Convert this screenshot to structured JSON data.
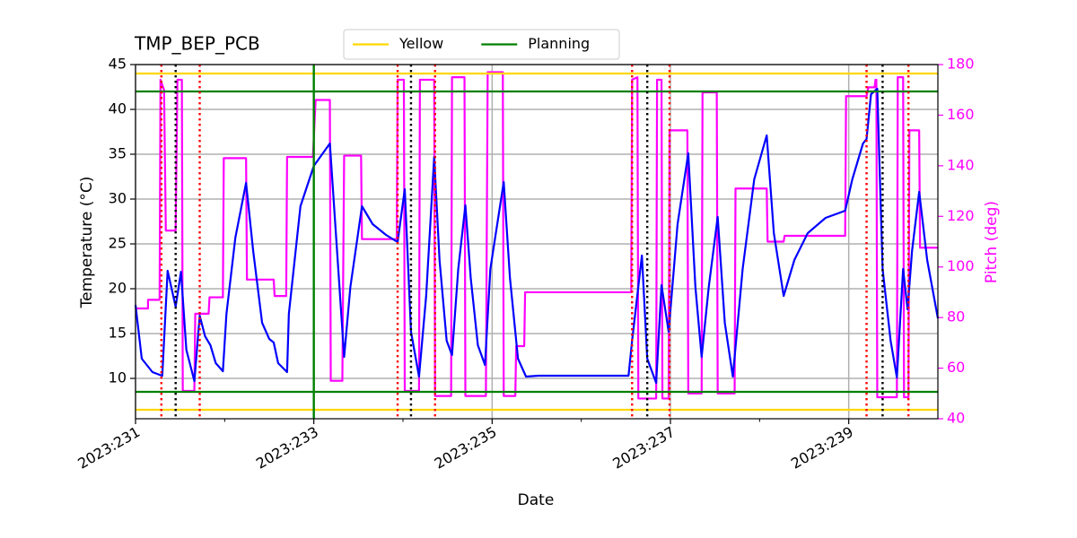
{
  "chart_data": {
    "type": "line",
    "title": "TMP_BEP_PCB",
    "xlabel": "Date",
    "ylabel": "Temperature (°C)",
    "y2label": "Pitch (deg)",
    "xlim": [
      231,
      240
    ],
    "xticks": [
      {
        "value": 231,
        "label": "2023:231"
      },
      {
        "value": 233,
        "label": "2023:233"
      },
      {
        "value": 235,
        "label": "2023:235"
      },
      {
        "value": 237,
        "label": "2023:237"
      },
      {
        "value": 239,
        "label": "2023:239"
      }
    ],
    "xminorticks": [
      232,
      234,
      236,
      238
    ],
    "ylim": [
      5.5,
      45
    ],
    "yticks": [
      10,
      15,
      20,
      25,
      30,
      35,
      40,
      45
    ],
    "y2lim": [
      40,
      180
    ],
    "y2ticks": [
      40,
      60,
      80,
      100,
      120,
      140,
      160,
      180
    ],
    "y2color": "#ff00ff",
    "grid": true,
    "legend": "upper center",
    "hlines": [
      {
        "name": "Yellow",
        "color": "#ffd700",
        "values": [
          44,
          6.5
        ]
      },
      {
        "name": "Planning",
        "color": "#008000",
        "values": [
          42,
          8.5
        ]
      }
    ],
    "vlines": [
      {
        "color": "#008000",
        "style": "solid",
        "x": [
          233
        ]
      },
      {
        "color": "#ff0000",
        "style": "dotted",
        "x": [
          231.29,
          231.72,
          233.94,
          234.36,
          236.57,
          236.99,
          239.2,
          239.67
        ]
      },
      {
        "color": "#000000",
        "style": "dotted",
        "x": [
          231.45,
          234.09,
          236.74,
          239.38
        ]
      }
    ],
    "series": [
      {
        "color": "#0000ff",
        "x": [
          231.0,
          231.07,
          231.19,
          231.27,
          231.3,
          231.36,
          231.45,
          231.51,
          231.57,
          231.66,
          231.72,
          231.78,
          231.84,
          231.9,
          231.98,
          232.02,
          232.12,
          232.24,
          232.32,
          232.42,
          232.5,
          232.55,
          232.6,
          232.7,
          232.72,
          232.85,
          233.0,
          233.18,
          233.34,
          233.41,
          233.54,
          233.66,
          233.81,
          233.94,
          234.02,
          234.09,
          234.18,
          234.26,
          234.35,
          234.41,
          234.49,
          234.55,
          234.62,
          234.7,
          234.76,
          234.84,
          234.92,
          234.98,
          235.13,
          235.2,
          235.29,
          235.38,
          235.52,
          236.53,
          236.57,
          236.68,
          236.74,
          236.84,
          236.9,
          236.98,
          237.08,
          237.2,
          237.28,
          237.35,
          237.43,
          237.53,
          237.61,
          237.7,
          237.81,
          237.94,
          238.08,
          238.16,
          238.27,
          238.39,
          238.54,
          238.74,
          238.96,
          239.04,
          239.16,
          239.2,
          239.25,
          239.32,
          239.38,
          239.47,
          239.54,
          239.61,
          239.66,
          239.71,
          239.79,
          239.88,
          240.0
        ],
        "values": [
          18.2,
          12.2,
          10.7,
          10.4,
          10.3,
          22.0,
          18.0,
          21.9,
          13.2,
          9.7,
          17.0,
          14.7,
          13.7,
          11.7,
          10.8,
          17.2,
          25.7,
          31.8,
          24.2,
          16.2,
          14.4,
          14.0,
          11.7,
          10.7,
          17.2,
          29.2,
          33.7,
          36.2,
          12.4,
          20.2,
          29.2,
          27.2,
          26.0,
          25.2,
          31.1,
          15.2,
          10.2,
          19.2,
          34.7,
          23.2,
          14.2,
          12.6,
          22.2,
          29.3,
          21.2,
          13.7,
          11.5,
          22.2,
          31.9,
          21.2,
          12.2,
          10.2,
          10.3,
          10.3,
          14.2,
          23.7,
          12.2,
          9.5,
          20.4,
          15.2,
          27.2,
          35.1,
          20.2,
          12.4,
          20.2,
          28.0,
          16.2,
          10.2,
          22.2,
          32.2,
          37.1,
          26.2,
          19.2,
          23.2,
          26.2,
          27.9,
          28.7,
          32.2,
          36.2,
          36.7,
          41.7,
          42.3,
          22.2,
          14.2,
          10.1,
          22.2,
          17.7,
          24.2,
          30.8,
          23.2,
          16.7
        ]
      },
      {
        "color": "#ff00ff",
        "axis": "y2",
        "x": [
          231.0,
          231.14,
          231.14,
          231.27,
          231.28,
          231.32,
          231.34,
          231.45,
          231.47,
          231.52,
          231.53,
          231.66,
          231.67,
          231.82,
          231.83,
          231.98,
          231.99,
          232.24,
          232.25,
          232.55,
          232.56,
          232.69,
          232.7,
          232.99,
          233.02,
          233.18,
          233.19,
          233.32,
          233.34,
          233.53,
          233.54,
          233.93,
          233.94,
          234.01,
          234.02,
          234.18,
          234.19,
          234.35,
          234.36,
          234.54,
          234.55,
          234.69,
          234.7,
          234.93,
          234.95,
          235.12,
          235.13,
          235.26,
          235.27,
          235.36,
          235.37,
          236.56,
          236.57,
          236.63,
          236.64,
          236.84,
          236.85,
          236.9,
          236.91,
          236.98,
          236.99,
          237.19,
          237.2,
          237.35,
          237.36,
          237.52,
          237.53,
          237.72,
          237.73,
          238.08,
          238.09,
          238.27,
          238.28,
          238.96,
          238.97,
          239.2,
          239.22,
          239.29,
          239.3,
          239.31,
          239.32,
          239.54,
          239.55,
          239.61,
          239.62,
          239.67,
          239.68,
          239.79,
          239.8,
          240.0
        ],
        "values": [
          83.6,
          83.6,
          87,
          87,
          174,
          170,
          114.4,
          114.4,
          174,
          174,
          51,
          51,
          81.5,
          81.5,
          88,
          88,
          143,
          143,
          95,
          95,
          88.5,
          88.5,
          143.5,
          143.5,
          166,
          166,
          55,
          55,
          144,
          144,
          111,
          111,
          174,
          174,
          51,
          51,
          174,
          174,
          49,
          49,
          175,
          175,
          49,
          49,
          177,
          177,
          49,
          49,
          68.7,
          68.7,
          90,
          90,
          174,
          175,
          48,
          48,
          174,
          174,
          48,
          48,
          154,
          154,
          50,
          50,
          169,
          169,
          50,
          50,
          131,
          131,
          110,
          110,
          112.3,
          112.3,
          167.5,
          167.5,
          171,
          171,
          174,
          174,
          48.5,
          48.5,
          175,
          175,
          48.5,
          48.5,
          154,
          154,
          107.6,
          107.6
        ]
      }
    ]
  }
}
